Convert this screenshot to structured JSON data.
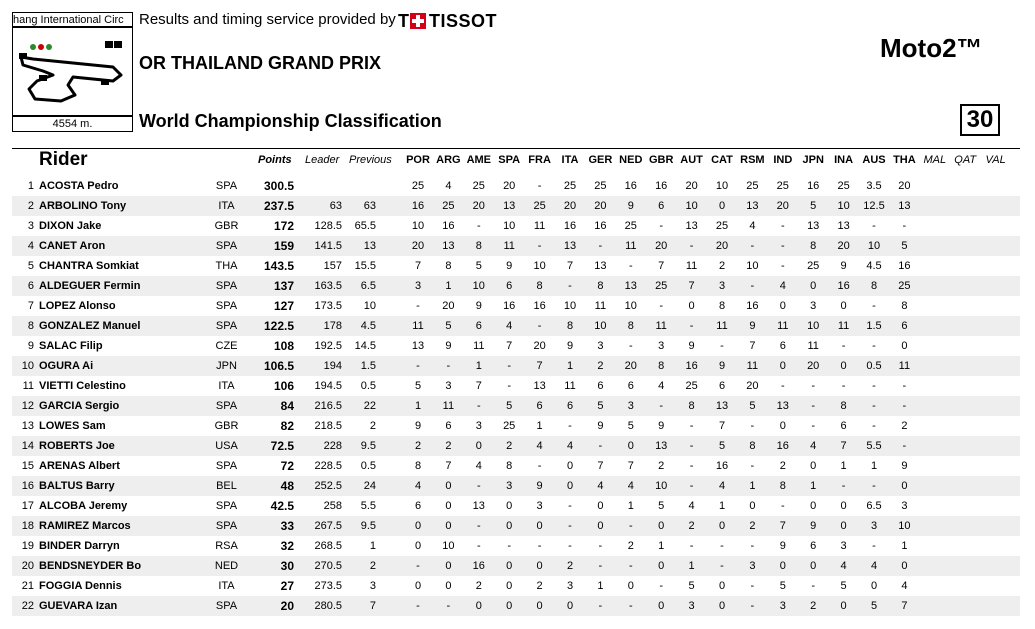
{
  "header": {
    "circuit_name": "hang International Circ",
    "track_length": "4554 m.",
    "timing_text": "Results and timing service provided by",
    "tissot_logo": {
      "word": "TISSOT",
      "mark": "T",
      "color": "#d4001a"
    },
    "event": "OR THAILAND GRAND PRIX",
    "class": "Moto2™",
    "title": "World Championship Classification",
    "page": "30"
  },
  "columns": {
    "rider": "Rider",
    "points": "Points",
    "leader": "Leader",
    "previous": "Previous",
    "races": [
      "POR",
      "ARG",
      "AME",
      "SPA",
      "FRA",
      "ITA",
      "GER",
      "NED",
      "GBR",
      "AUT",
      "CAT",
      "RSM",
      "IND",
      "JPN",
      "INA",
      "AUS",
      "THA"
    ],
    "future_races": [
      "MAL",
      "QAT",
      "VAL"
    ]
  },
  "rows": [
    {
      "pos": "1",
      "name": "ACOSTA Pedro",
      "nat": "SPA",
      "points": "300.5",
      "leader": "",
      "previous": "",
      "results": [
        "25",
        "4",
        "25",
        "20",
        "-",
        "25",
        "25",
        "16",
        "16",
        "20",
        "10",
        "25",
        "25",
        "16",
        "25",
        "3.5",
        "20"
      ]
    },
    {
      "pos": "2",
      "name": "ARBOLINO Tony",
      "nat": "ITA",
      "points": "237.5",
      "leader": "63",
      "previous": "63",
      "results": [
        "16",
        "25",
        "20",
        "13",
        "25",
        "20",
        "20",
        "9",
        "6",
        "10",
        "0",
        "13",
        "20",
        "5",
        "10",
        "12.5",
        "13"
      ]
    },
    {
      "pos": "3",
      "name": "DIXON Jake",
      "nat": "GBR",
      "points": "172",
      "leader": "128.5",
      "previous": "65.5",
      "results": [
        "10",
        "16",
        "-",
        "10",
        "11",
        "16",
        "16",
        "25",
        "-",
        "13",
        "25",
        "4",
        "-",
        "13",
        "13",
        "-",
        "-"
      ]
    },
    {
      "pos": "4",
      "name": "CANET Aron",
      "nat": "SPA",
      "points": "159",
      "leader": "141.5",
      "previous": "13",
      "results": [
        "20",
        "13",
        "8",
        "11",
        "-",
        "13",
        "-",
        "11",
        "20",
        "-",
        "20",
        "-",
        "-",
        "8",
        "20",
        "10",
        "5"
      ]
    },
    {
      "pos": "5",
      "name": "CHANTRA Somkiat",
      "nat": "THA",
      "points": "143.5",
      "leader": "157",
      "previous": "15.5",
      "results": [
        "7",
        "8",
        "5",
        "9",
        "10",
        "7",
        "13",
        "-",
        "7",
        "11",
        "2",
        "10",
        "-",
        "25",
        "9",
        "4.5",
        "16"
      ]
    },
    {
      "pos": "6",
      "name": "ALDEGUER Fermin",
      "nat": "SPA",
      "points": "137",
      "leader": "163.5",
      "previous": "6.5",
      "results": [
        "3",
        "1",
        "10",
        "6",
        "8",
        "-",
        "8",
        "13",
        "25",
        "7",
        "3",
        "-",
        "4",
        "0",
        "16",
        "8",
        "25"
      ]
    },
    {
      "pos": "7",
      "name": "LOPEZ Alonso",
      "nat": "SPA",
      "points": "127",
      "leader": "173.5",
      "previous": "10",
      "results": [
        "-",
        "20",
        "9",
        "16",
        "16",
        "10",
        "11",
        "10",
        "-",
        "0",
        "8",
        "16",
        "0",
        "3",
        "0",
        "-",
        "8"
      ]
    },
    {
      "pos": "8",
      "name": "GONZALEZ Manuel",
      "nat": "SPA",
      "points": "122.5",
      "leader": "178",
      "previous": "4.5",
      "results": [
        "11",
        "5",
        "6",
        "4",
        "-",
        "8",
        "10",
        "8",
        "11",
        "-",
        "11",
        "9",
        "11",
        "10",
        "11",
        "1.5",
        "6"
      ]
    },
    {
      "pos": "9",
      "name": "SALAC Filip",
      "nat": "CZE",
      "points": "108",
      "leader": "192.5",
      "previous": "14.5",
      "results": [
        "13",
        "9",
        "11",
        "7",
        "20",
        "9",
        "3",
        "-",
        "3",
        "9",
        "-",
        "7",
        "6",
        "11",
        "-",
        "-",
        "0"
      ]
    },
    {
      "pos": "10",
      "name": "OGURA Ai",
      "nat": "JPN",
      "points": "106.5",
      "leader": "194",
      "previous": "1.5",
      "results": [
        "-",
        "-",
        "1",
        "-",
        "7",
        "1",
        "2",
        "20",
        "8",
        "16",
        "9",
        "11",
        "0",
        "20",
        "0",
        "0.5",
        "11"
      ]
    },
    {
      "pos": "11",
      "name": "VIETTI Celestino",
      "nat": "ITA",
      "points": "106",
      "leader": "194.5",
      "previous": "0.5",
      "results": [
        "5",
        "3",
        "7",
        "-",
        "13",
        "11",
        "6",
        "6",
        "4",
        "25",
        "6",
        "20",
        "-",
        "-",
        "-",
        "-",
        "-"
      ]
    },
    {
      "pos": "12",
      "name": "GARCIA Sergio",
      "nat": "SPA",
      "points": "84",
      "leader": "216.5",
      "previous": "22",
      "results": [
        "1",
        "11",
        "-",
        "5",
        "6",
        "6",
        "5",
        "3",
        "-",
        "8",
        "13",
        "5",
        "13",
        "-",
        "8",
        "-",
        "-"
      ]
    },
    {
      "pos": "13",
      "name": "LOWES Sam",
      "nat": "GBR",
      "points": "82",
      "leader": "218.5",
      "previous": "2",
      "results": [
        "9",
        "6",
        "3",
        "25",
        "1",
        "-",
        "9",
        "5",
        "9",
        "-",
        "7",
        "-",
        "0",
        "-",
        "6",
        "-",
        "2"
      ]
    },
    {
      "pos": "14",
      "name": "ROBERTS Joe",
      "nat": "USA",
      "points": "72.5",
      "leader": "228",
      "previous": "9.5",
      "results": [
        "2",
        "2",
        "0",
        "2",
        "4",
        "4",
        "-",
        "0",
        "13",
        "-",
        "5",
        "8",
        "16",
        "4",
        "7",
        "5.5",
        "-"
      ]
    },
    {
      "pos": "15",
      "name": "ARENAS Albert",
      "nat": "SPA",
      "points": "72",
      "leader": "228.5",
      "previous": "0.5",
      "results": [
        "8",
        "7",
        "4",
        "8",
        "-",
        "0",
        "7",
        "7",
        "2",
        "-",
        "16",
        "-",
        "2",
        "0",
        "1",
        "1",
        "9"
      ]
    },
    {
      "pos": "16",
      "name": "BALTUS Barry",
      "nat": "BEL",
      "points": "48",
      "leader": "252.5",
      "previous": "24",
      "results": [
        "4",
        "0",
        "-",
        "3",
        "9",
        "0",
        "4",
        "4",
        "10",
        "-",
        "4",
        "1",
        "8",
        "1",
        "-",
        "-",
        "0"
      ]
    },
    {
      "pos": "17",
      "name": "ALCOBA Jeremy",
      "nat": "SPA",
      "points": "42.5",
      "leader": "258",
      "previous": "5.5",
      "results": [
        "6",
        "0",
        "13",
        "0",
        "3",
        "-",
        "0",
        "1",
        "5",
        "4",
        "1",
        "0",
        "-",
        "0",
        "0",
        "6.5",
        "3"
      ]
    },
    {
      "pos": "18",
      "name": "RAMIREZ Marcos",
      "nat": "SPA",
      "points": "33",
      "leader": "267.5",
      "previous": "9.5",
      "results": [
        "0",
        "0",
        "-",
        "0",
        "0",
        "-",
        "0",
        "-",
        "0",
        "2",
        "0",
        "2",
        "7",
        "9",
        "0",
        "3",
        "10"
      ]
    },
    {
      "pos": "19",
      "name": "BINDER Darryn",
      "nat": "RSA",
      "points": "32",
      "leader": "268.5",
      "previous": "1",
      "results": [
        "0",
        "10",
        "-",
        "-",
        "-",
        "-",
        "-",
        "2",
        "1",
        "-",
        "-",
        "-",
        "9",
        "6",
        "3",
        "-",
        "1"
      ]
    },
    {
      "pos": "20",
      "name": "BENDSNEYDER Bo",
      "nat": "NED",
      "points": "30",
      "leader": "270.5",
      "previous": "2",
      "results": [
        "-",
        "0",
        "16",
        "0",
        "0",
        "2",
        "-",
        "-",
        "0",
        "1",
        "-",
        "3",
        "0",
        "0",
        "4",
        "4",
        "0"
      ]
    },
    {
      "pos": "21",
      "name": "FOGGIA Dennis",
      "nat": "ITA",
      "points": "27",
      "leader": "273.5",
      "previous": "3",
      "results": [
        "0",
        "0",
        "2",
        "0",
        "2",
        "3",
        "1",
        "0",
        "-",
        "5",
        "0",
        "-",
        "5",
        "-",
        "5",
        "0",
        "4"
      ]
    },
    {
      "pos": "22",
      "name": "GUEVARA Izan",
      "nat": "SPA",
      "points": "20",
      "leader": "280.5",
      "previous": "7",
      "results": [
        "-",
        "-",
        "0",
        "0",
        "0",
        "0",
        "-",
        "-",
        "0",
        "3",
        "0",
        "-",
        "3",
        "2",
        "0",
        "5",
        "7"
      ]
    }
  ]
}
